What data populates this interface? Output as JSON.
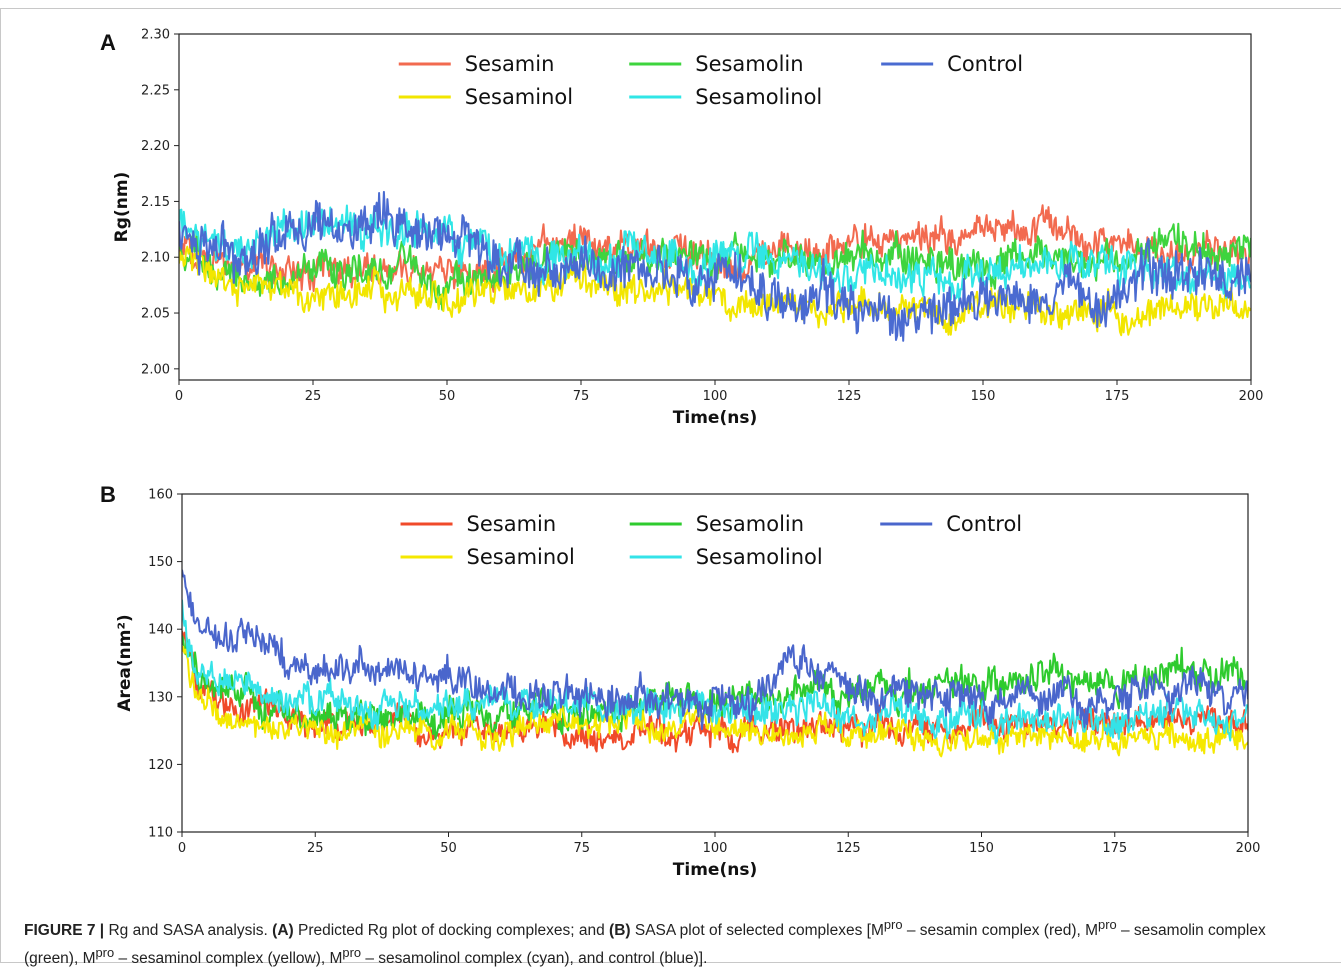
{
  "chart_data": [
    {
      "panel_label": "A",
      "type": "line",
      "xlabel": "Time(ns)",
      "ylabel": "Rg(nm)",
      "xlim": [
        0,
        200
      ],
      "ylim": [
        2.0,
        2.3
      ],
      "ylim_drawn": [
        1.99,
        2.3
      ],
      "xticks": [
        "0",
        "25",
        "50",
        "75",
        "100",
        "125",
        "150",
        "175",
        "200"
      ],
      "yticks": [
        "2.00",
        "2.05",
        "2.10",
        "2.15",
        "2.20",
        "2.25",
        "2.30"
      ],
      "grid": false,
      "legend": {
        "placement": "top-center",
        "columns": 3
      },
      "series": [
        {
          "name": "Sesamin",
          "color": "#f26a4f",
          "x": [
            0,
            10,
            20,
            30,
            40,
            50,
            60,
            70,
            80,
            90,
            100,
            110,
            120,
            130,
            140,
            150,
            160,
            170,
            180,
            190,
            200
          ],
          "y": [
            2.11,
            2.09,
            2.09,
            2.09,
            2.09,
            2.09,
            2.09,
            2.11,
            2.11,
            2.11,
            2.1,
            2.1,
            2.1,
            2.11,
            2.12,
            2.13,
            2.13,
            2.12,
            2.1,
            2.1,
            2.09
          ],
          "amp": 0.012
        },
        {
          "name": "Sesamolin",
          "color": "#3ed43e",
          "x": [
            0,
            10,
            20,
            30,
            40,
            50,
            60,
            70,
            80,
            90,
            100,
            110,
            120,
            130,
            140,
            150,
            160,
            170,
            180,
            190,
            200
          ],
          "y": [
            2.11,
            2.08,
            2.08,
            2.09,
            2.09,
            2.08,
            2.08,
            2.1,
            2.1,
            2.1,
            2.1,
            2.1,
            2.1,
            2.1,
            2.1,
            2.1,
            2.1,
            2.1,
            2.11,
            2.11,
            2.11
          ],
          "amp": 0.012
        },
        {
          "name": "Sesaminol",
          "color": "#f2e600",
          "x": [
            0,
            10,
            20,
            30,
            40,
            50,
            60,
            70,
            80,
            90,
            100,
            110,
            120,
            130,
            140,
            150,
            160,
            170,
            180,
            190,
            200
          ],
          "y": [
            2.1,
            2.07,
            2.07,
            2.07,
            2.07,
            2.06,
            2.07,
            2.08,
            2.08,
            2.07,
            2.07,
            2.06,
            2.06,
            2.05,
            2.05,
            2.05,
            2.05,
            2.05,
            2.05,
            2.06,
            2.06
          ],
          "amp": 0.011
        },
        {
          "name": "Sesamolinol",
          "color": "#30e6e6",
          "x": [
            0,
            10,
            20,
            30,
            40,
            50,
            60,
            70,
            80,
            90,
            100,
            110,
            120,
            130,
            140,
            150,
            160,
            170,
            180,
            190,
            200
          ],
          "y": [
            2.13,
            2.11,
            2.12,
            2.13,
            2.12,
            2.12,
            2.1,
            2.1,
            2.1,
            2.1,
            2.1,
            2.1,
            2.09,
            2.08,
            2.08,
            2.08,
            2.09,
            2.09,
            2.09,
            2.09,
            2.08
          ],
          "amp": 0.013
        },
        {
          "name": "Control",
          "color": "#4a6bd1",
          "x": [
            0,
            10,
            20,
            30,
            40,
            50,
            60,
            70,
            80,
            90,
            100,
            110,
            120,
            130,
            140,
            150,
            160,
            170,
            180,
            190,
            200
          ],
          "y": [
            2.12,
            2.1,
            2.13,
            2.13,
            2.12,
            2.12,
            2.1,
            2.09,
            2.09,
            2.09,
            2.08,
            2.07,
            2.06,
            2.05,
            2.05,
            2.06,
            2.07,
            2.07,
            2.08,
            2.09,
            2.08
          ],
          "amp": 0.016
        }
      ]
    },
    {
      "panel_label": "B",
      "type": "line",
      "xlabel": "Time(ns)",
      "ylabel": "Area(nm²)",
      "xlim": [
        0,
        200
      ],
      "ylim": [
        110,
        160
      ],
      "xticks": [
        "0",
        "25",
        "50",
        "75",
        "100",
        "125",
        "150",
        "175",
        "200"
      ],
      "yticks": [
        "110",
        "120",
        "130",
        "140",
        "150",
        "160"
      ],
      "grid": false,
      "legend": {
        "placement": "top-center",
        "columns": 3
      },
      "series": [
        {
          "name": "Sesamin",
          "color": "#f04a2a",
          "x": [
            0,
            3,
            10,
            20,
            30,
            40,
            50,
            60,
            70,
            80,
            90,
            100,
            110,
            120,
            130,
            140,
            150,
            160,
            170,
            180,
            190,
            200
          ],
          "y": [
            140,
            131,
            129,
            127,
            126,
            125,
            125,
            125,
            125,
            124,
            124,
            125,
            125,
            125,
            125,
            125,
            126,
            126,
            126,
            126,
            126,
            126
          ],
          "amp": 1.6
        },
        {
          "name": "Sesamolin",
          "color": "#2ecb2e",
          "x": [
            0,
            3,
            10,
            20,
            30,
            40,
            50,
            60,
            70,
            80,
            90,
            100,
            110,
            120,
            130,
            140,
            150,
            160,
            170,
            180,
            190,
            200
          ],
          "y": [
            140,
            133,
            130,
            128,
            127,
            127,
            127,
            127,
            128,
            128,
            129,
            129,
            130,
            131,
            131,
            132,
            132,
            132,
            132,
            132,
            133,
            133
          ],
          "amp": 1.9
        },
        {
          "name": "Sesaminol",
          "color": "#f5e800",
          "x": [
            0,
            3,
            10,
            20,
            30,
            40,
            50,
            60,
            70,
            80,
            90,
            100,
            110,
            120,
            130,
            140,
            150,
            160,
            170,
            180,
            190,
            200
          ],
          "y": [
            138,
            129,
            126,
            125,
            125,
            125,
            125,
            125,
            126,
            126,
            126,
            125,
            125,
            125,
            124,
            124,
            124,
            124,
            124,
            124,
            124,
            124
          ],
          "amp": 1.5
        },
        {
          "name": "Sesamolinol",
          "color": "#34e3e8",
          "x": [
            0,
            3,
            10,
            20,
            30,
            40,
            50,
            60,
            70,
            80,
            90,
            100,
            110,
            120,
            130,
            140,
            150,
            160,
            170,
            180,
            190,
            200
          ],
          "y": [
            143,
            134,
            131,
            130,
            129,
            128,
            128,
            129,
            129,
            129,
            128,
            128,
            128,
            128,
            127,
            127,
            127,
            127,
            127,
            127,
            127,
            127
          ],
          "amp": 1.8
        },
        {
          "name": "Control",
          "color": "#4a66cc",
          "x": [
            0,
            3,
            10,
            20,
            30,
            40,
            50,
            60,
            70,
            80,
            90,
            100,
            110,
            115,
            120,
            125,
            130,
            140,
            150,
            160,
            170,
            180,
            190,
            200
          ],
          "y": [
            148,
            141,
            139,
            135,
            134,
            133,
            132,
            131,
            130,
            130,
            130,
            129,
            130,
            135,
            134,
            131,
            130,
            130,
            130,
            130,
            130,
            130,
            131,
            131
          ],
          "amp": 2.0
        }
      ]
    }
  ],
  "caption": {
    "figure_label": "FIGURE 7 |",
    "intro": " Rg and SASA analysis. ",
    "part_a_label": "(A)",
    "part_a_text": " Predicted Rg plot of docking complexes; and ",
    "part_b_label": "(B)",
    "part_b_text_1": " SASA plot of selected complexes [M",
    "sup": "pro",
    "t1": " – sesamin complex (red), M",
    "t2": " – sesamolin complex (green), M",
    "t3": " – sesaminol complex (yellow), M",
    "t4": " – sesamolinol complex (cyan), and control (blue)]."
  }
}
